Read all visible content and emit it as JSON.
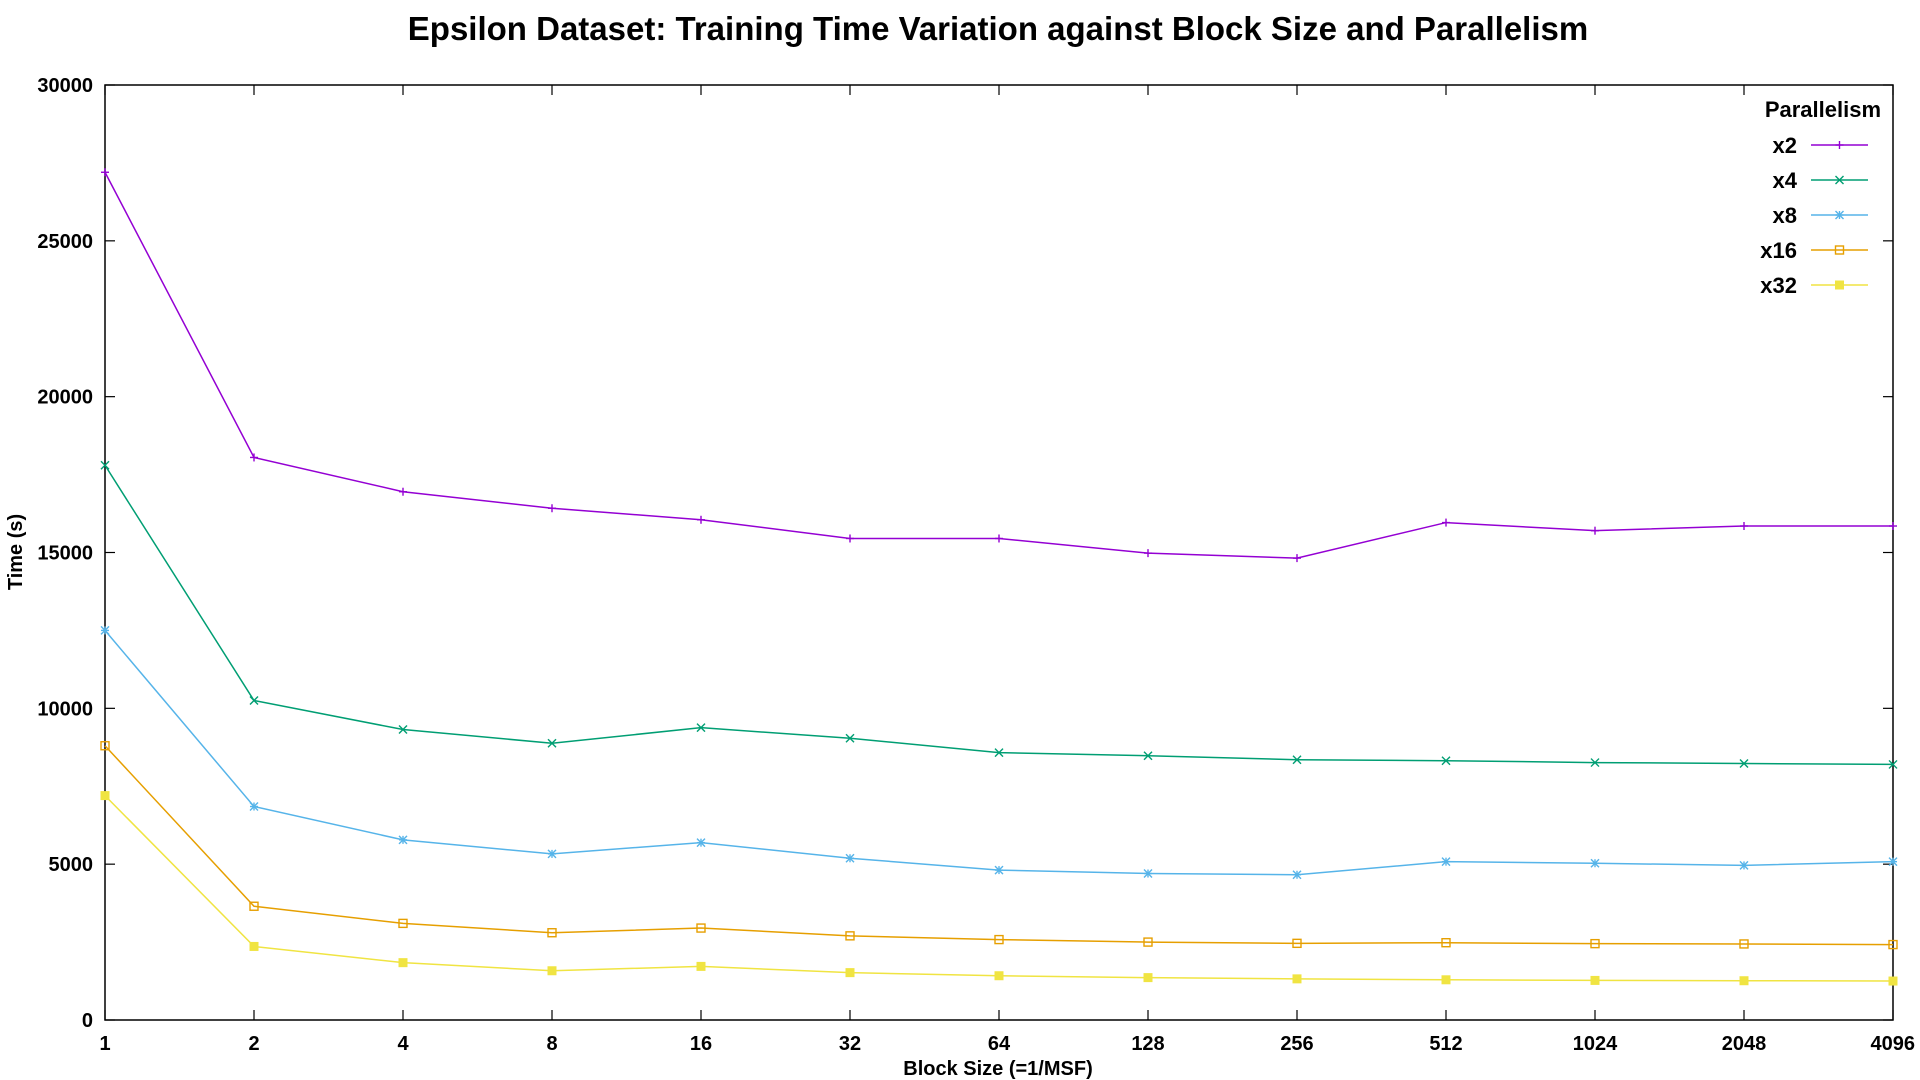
{
  "chart_data": {
    "type": "line",
    "title": "Epsilon Dataset: Training Time Variation against Block Size and Parallelism",
    "xlabel": "Block Size (=1/MSF)",
    "ylabel": "Time (s)",
    "x_scale": "log2",
    "categories": [
      "1",
      "2",
      "4",
      "8",
      "16",
      "32",
      "64",
      "128",
      "256",
      "512",
      "1024",
      "2048",
      "4096"
    ],
    "y_ticks": [
      "0",
      "5000",
      "10000",
      "15000",
      "20000",
      "25000",
      "30000"
    ],
    "ylim": [
      0,
      30000
    ],
    "grid": false,
    "legend_title": "Parallelism",
    "legend_position": "top-right",
    "series": [
      {
        "name": "x2",
        "color": "#9400d3",
        "marker": "plus",
        "values": [
          27200,
          18050,
          16950,
          16420,
          16050,
          15450,
          15450,
          14980,
          14820,
          15960,
          15700,
          15850,
          15850
        ]
      },
      {
        "name": "x4",
        "color": "#009e73",
        "marker": "cross",
        "values": [
          17800,
          10250,
          9320,
          8880,
          9380,
          9040,
          8580,
          8480,
          8350,
          8320,
          8260,
          8230,
          8200
        ]
      },
      {
        "name": "x8",
        "color": "#56b4e9",
        "marker": "star",
        "values": [
          12500,
          6850,
          5780,
          5330,
          5690,
          5190,
          4810,
          4700,
          4660,
          5080,
          5030,
          4960,
          5080
        ]
      },
      {
        "name": "x16",
        "color": "#e69f00",
        "marker": "open-square",
        "values": [
          8800,
          3650,
          3100,
          2800,
          2950,
          2700,
          2580,
          2500,
          2460,
          2480,
          2450,
          2440,
          2420
        ]
      },
      {
        "name": "x32",
        "color": "#f0e442",
        "marker": "filled-square",
        "values": [
          7200,
          2360,
          1840,
          1580,
          1720,
          1520,
          1420,
          1360,
          1320,
          1290,
          1270,
          1260,
          1250
        ]
      }
    ]
  }
}
